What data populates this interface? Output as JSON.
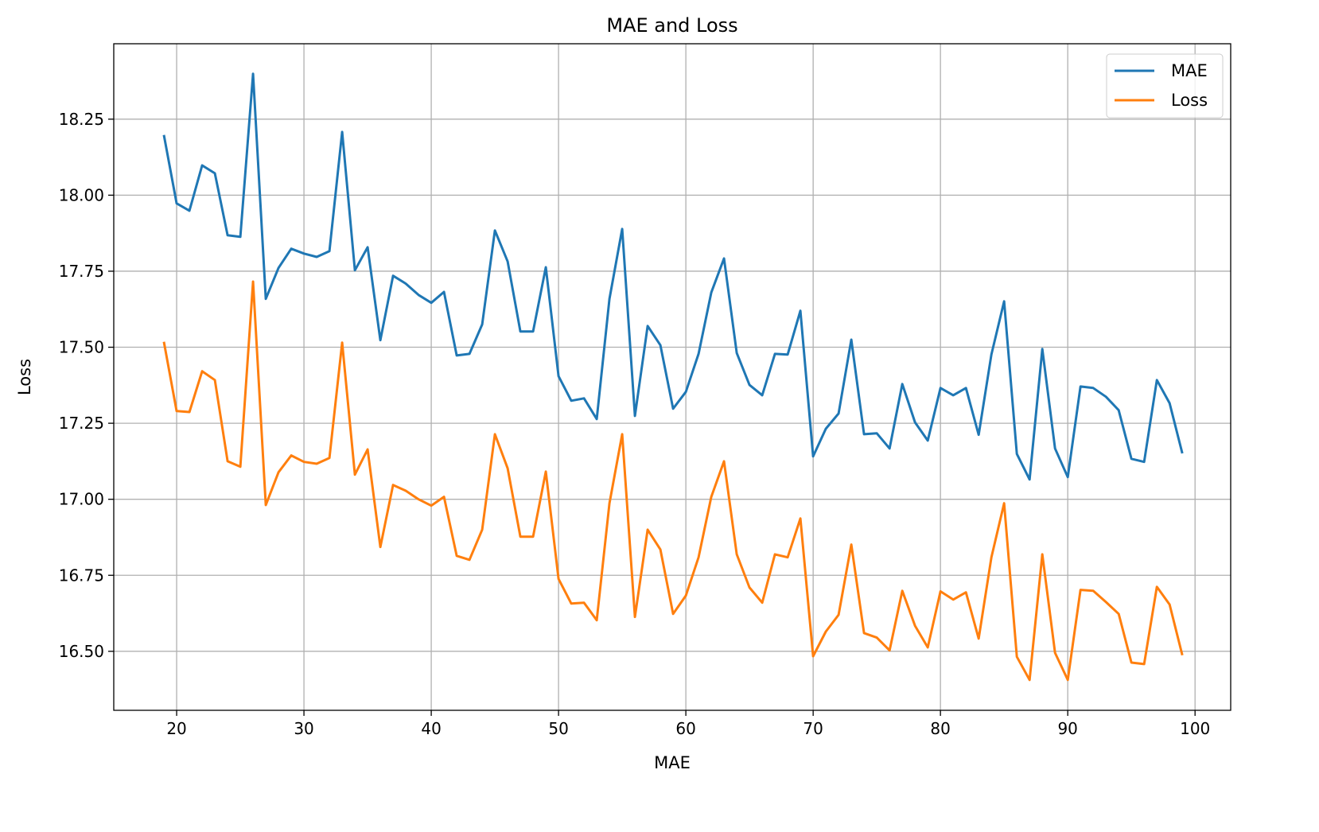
{
  "chart_data": {
    "type": "line",
    "title": "MAE and Loss",
    "xlabel": "MAE",
    "ylabel": "Loss",
    "xlim": [
      15.06,
      102.8
    ],
    "ylim": [
      16.306,
      18.498
    ],
    "xticks": [
      "20",
      "30",
      "40",
      "50",
      "60",
      "70",
      "80",
      "90",
      "100"
    ],
    "yticks": [
      "16.50",
      "16.75",
      "17.00",
      "17.25",
      "17.50",
      "17.75",
      "18.00",
      "18.25"
    ],
    "grid": true,
    "legend_position": "top-right",
    "x": [
      19,
      20,
      21,
      22,
      23,
      24,
      25,
      26,
      27,
      28,
      29,
      30,
      31,
      32,
      33,
      34,
      35,
      36,
      37,
      38,
      39,
      40,
      41,
      42,
      43,
      44,
      45,
      46,
      47,
      48,
      49,
      50,
      51,
      52,
      53,
      54,
      55,
      56,
      57,
      58,
      59,
      60,
      61,
      62,
      63,
      64,
      65,
      66,
      67,
      68,
      69,
      70,
      71,
      72,
      73,
      74,
      75,
      76,
      77,
      78,
      79,
      80,
      81,
      82,
      83,
      84,
      85,
      86,
      87,
      88,
      89,
      90,
      91,
      92,
      93,
      94,
      95,
      96,
      97,
      98,
      99
    ],
    "series": [
      {
        "name": "MAE",
        "color": "#1f77b4",
        "values": [
          18.198,
          17.973,
          17.949,
          18.098,
          18.072,
          17.868,
          17.863,
          18.399,
          17.659,
          17.761,
          17.824,
          17.808,
          17.797,
          17.816,
          18.208,
          17.753,
          17.829,
          17.523,
          17.735,
          17.709,
          17.672,
          17.646,
          17.682,
          17.473,
          17.478,
          17.575,
          17.884,
          17.782,
          17.552,
          17.552,
          17.763,
          17.405,
          17.324,
          17.332,
          17.264,
          17.659,
          17.889,
          17.274,
          17.57,
          17.507,
          17.298,
          17.353,
          17.478,
          17.68,
          17.792,
          17.481,
          17.376,
          17.342,
          17.478,
          17.476,
          17.62,
          17.141,
          17.232,
          17.282,
          17.525,
          17.214,
          17.217,
          17.167,
          17.379,
          17.253,
          17.193,
          17.366,
          17.342,
          17.366,
          17.212,
          17.476,
          17.651,
          17.149,
          17.065,
          17.494,
          17.167,
          17.073,
          17.371,
          17.366,
          17.337,
          17.293,
          17.133,
          17.123,
          17.392,
          17.316,
          17.151
        ]
      },
      {
        "name": "Loss",
        "color": "#ff7f0e",
        "values": [
          17.518,
          17.29,
          17.287,
          17.421,
          17.392,
          17.125,
          17.107,
          17.716,
          16.981,
          17.089,
          17.144,
          17.123,
          17.117,
          17.136,
          17.515,
          17.081,
          17.164,
          16.843,
          17.047,
          17.028,
          17.0,
          16.979,
          17.008,
          16.814,
          16.801,
          16.9,
          17.214,
          17.102,
          16.877,
          16.877,
          17.091,
          16.738,
          16.657,
          16.66,
          16.602,
          16.987,
          17.214,
          16.613,
          16.9,
          16.835,
          16.623,
          16.683,
          16.809,
          17.008,
          17.125,
          16.819,
          16.71,
          16.66,
          16.819,
          16.809,
          16.937,
          16.484,
          16.565,
          16.62,
          16.851,
          16.56,
          16.545,
          16.503,
          16.699,
          16.584,
          16.513,
          16.697,
          16.67,
          16.694,
          16.542,
          16.809,
          16.987,
          16.482,
          16.406,
          16.819,
          16.495,
          16.406,
          16.702,
          16.699,
          16.662,
          16.623,
          16.463,
          16.458,
          16.712,
          16.654,
          16.487
        ]
      }
    ]
  }
}
